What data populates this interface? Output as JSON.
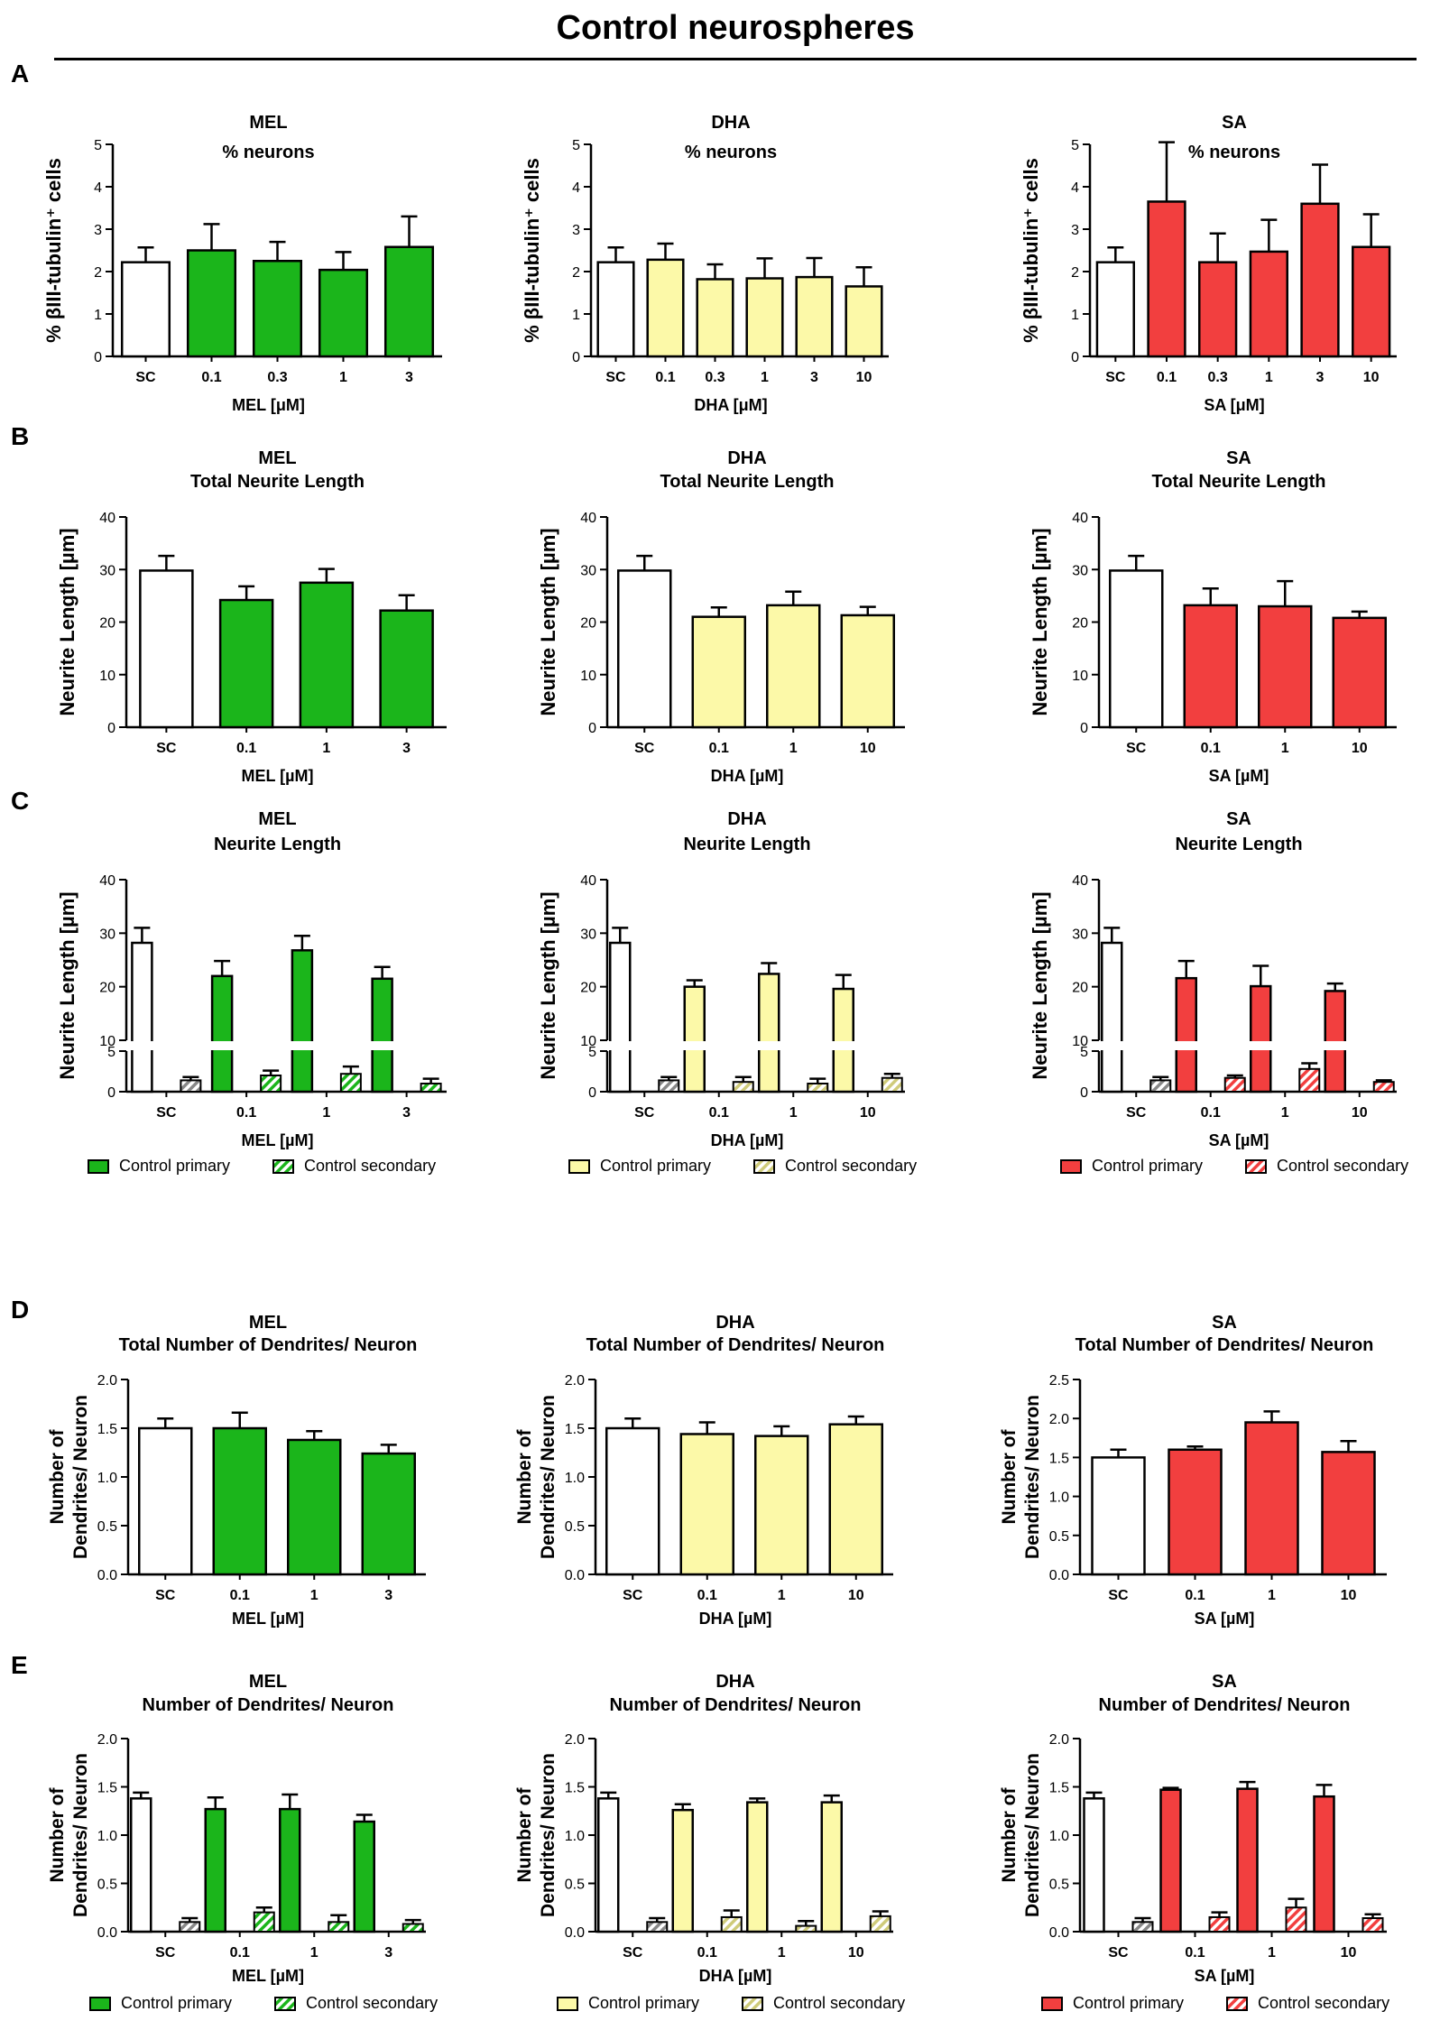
{
  "page": {
    "title": "Control neurospheres",
    "panel_letters": [
      "A",
      "B",
      "C",
      "D",
      "E"
    ]
  },
  "colors": {
    "SC": "#ffffff",
    "MEL": "#1bb51b",
    "DHA": "#fcf9a8",
    "SA": "#f23f3f"
  },
  "legends": {
    "MEL": {
      "primary": "Control primary",
      "secondary": "Control secondary"
    },
    "DHA": {
      "primary": "Control primary",
      "secondary": "Control secondary"
    },
    "SA": {
      "primary": "Control primary",
      "secondary": "Control secondary"
    }
  },
  "chart_data": [
    {
      "id": "A-MEL",
      "row": "A",
      "type": "bar",
      "treatment": "MEL",
      "title": [
        "MEL",
        "% neurons"
      ],
      "ylabel": "% βIII-tubulin⁺ cells",
      "xlabel": "MEL [μM]",
      "ylim": [
        0,
        5
      ],
      "yticks": [
        0,
        1,
        2,
        3,
        4,
        5
      ],
      "categories": [
        "SC",
        "0.1",
        "0.3",
        "1",
        "3"
      ],
      "values": [
        2.22,
        2.5,
        2.25,
        2.04,
        2.58
      ],
      "errors": [
        0.35,
        0.62,
        0.45,
        0.42,
        0.72
      ]
    },
    {
      "id": "A-DHA",
      "row": "A",
      "type": "bar",
      "treatment": "DHA",
      "title": [
        "DHA",
        "% neurons"
      ],
      "ylabel": "% βIII-tubulin⁺ cells",
      "xlabel": "DHA [μM]",
      "ylim": [
        0,
        5
      ],
      "yticks": [
        0,
        1,
        2,
        3,
        4,
        5
      ],
      "categories": [
        "SC",
        "0.1",
        "0.3",
        "1",
        "3",
        "10"
      ],
      "values": [
        2.22,
        2.28,
        1.82,
        1.84,
        1.87,
        1.65
      ],
      "errors": [
        0.35,
        0.38,
        0.35,
        0.47,
        0.45,
        0.45
      ]
    },
    {
      "id": "A-SA",
      "row": "A",
      "type": "bar",
      "treatment": "SA",
      "title": [
        "SA",
        "% neurons"
      ],
      "ylabel": "% βIII-tubulin⁺ cells",
      "xlabel": "SA [μM]",
      "ylim": [
        0,
        5
      ],
      "yticks": [
        0,
        1,
        2,
        3,
        4,
        5
      ],
      "categories": [
        "SC",
        "0.1",
        "0.3",
        "1",
        "3",
        "10"
      ],
      "values": [
        2.22,
        3.65,
        2.22,
        2.47,
        3.6,
        2.58
      ],
      "errors": [
        0.35,
        1.4,
        0.68,
        0.75,
        0.92,
        0.77
      ]
    },
    {
      "id": "B-MEL",
      "row": "B",
      "type": "bar",
      "treatment": "MEL",
      "title": [
        "MEL",
        "Total Neurite Length"
      ],
      "ylabel": "Neurite Length [µm]",
      "xlabel": "MEL [µM]",
      "ylim": [
        0,
        40
      ],
      "yticks": [
        0,
        10,
        20,
        30,
        40
      ],
      "categories": [
        "SC",
        "0.1",
        "1",
        "3"
      ],
      "values": [
        29.8,
        24.2,
        27.5,
        22.2
      ],
      "errors": [
        2.8,
        2.6,
        2.6,
        2.9
      ]
    },
    {
      "id": "B-DHA",
      "row": "B",
      "type": "bar",
      "treatment": "DHA",
      "title": [
        "DHA",
        "Total Neurite Length"
      ],
      "ylabel": "Neurite Length [µm]",
      "xlabel": "DHA [µM]",
      "ylim": [
        0,
        40
      ],
      "yticks": [
        0,
        10,
        20,
        30,
        40
      ],
      "categories": [
        "SC",
        "0.1",
        "1",
        "10"
      ],
      "values": [
        29.8,
        21.0,
        23.2,
        21.3
      ],
      "errors": [
        2.8,
        1.8,
        2.6,
        1.6
      ]
    },
    {
      "id": "B-SA",
      "row": "B",
      "type": "bar",
      "treatment": "SA",
      "title": [
        "SA",
        "Total Neurite Length"
      ],
      "ylabel": "Neurite Length [µm]",
      "xlabel": "SA [µM]",
      "ylim": [
        0,
        40
      ],
      "yticks": [
        0,
        10,
        20,
        30,
        40
      ],
      "categories": [
        "SC",
        "0.1",
        "1",
        "10"
      ],
      "values": [
        29.8,
        23.2,
        23.0,
        20.8
      ],
      "errors": [
        2.8,
        3.2,
        4.8,
        1.2
      ]
    },
    {
      "id": "C-MEL",
      "row": "C",
      "type": "bar",
      "treatment": "MEL",
      "title": [
        "MEL",
        "Neurite Length"
      ],
      "ylabel": "Neurite Length [µm]",
      "xlabel": "MEL [µM]",
      "broken_axis": true,
      "yticks": [
        0,
        5,
        10,
        20,
        30,
        40
      ],
      "categories": [
        "SC",
        "0.1",
        "1",
        "3"
      ],
      "series": [
        {
          "name": "Control primary",
          "values": [
            28.2,
            22.0,
            26.8,
            21.5
          ],
          "errors": [
            2.8,
            2.8,
            2.7,
            2.2
          ]
        },
        {
          "name": "Control secondary",
          "values": [
            1.4,
            2.0,
            2.2,
            1.0
          ],
          "errors": [
            0.4,
            0.6,
            0.9,
            0.6
          ]
        }
      ]
    },
    {
      "id": "C-DHA",
      "row": "C",
      "type": "bar",
      "treatment": "DHA",
      "title": [
        "DHA",
        "Neurite Length"
      ],
      "ylabel": "Neurite Length [µm]",
      "xlabel": "DHA [µM]",
      "broken_axis": true,
      "yticks": [
        0,
        5,
        10,
        20,
        30,
        40
      ],
      "categories": [
        "SC",
        "0.1",
        "1",
        "10"
      ],
      "series": [
        {
          "name": "Control primary",
          "values": [
            28.2,
            20.0,
            22.4,
            19.6
          ],
          "errors": [
            2.8,
            1.2,
            2.0,
            2.6
          ]
        },
        {
          "name": "Control secondary",
          "values": [
            1.4,
            1.2,
            1.0,
            1.7
          ],
          "errors": [
            0.4,
            0.6,
            0.6,
            0.5
          ]
        }
      ]
    },
    {
      "id": "C-SA",
      "row": "C",
      "type": "bar",
      "treatment": "SA",
      "title": [
        "SA",
        "Neurite Length"
      ],
      "ylabel": "Neurite Length [µm]",
      "xlabel": "SA [µM]",
      "broken_axis": true,
      "yticks": [
        0,
        5,
        10,
        20,
        30,
        40
      ],
      "categories": [
        "SC",
        "0.1",
        "1",
        "10"
      ],
      "series": [
        {
          "name": "Control primary",
          "values": [
            28.2,
            21.6,
            20.1,
            19.2
          ],
          "errors": [
            2.8,
            3.2,
            3.8,
            1.4
          ]
        },
        {
          "name": "Control secondary",
          "values": [
            1.4,
            1.7,
            2.8,
            1.2
          ],
          "errors": [
            0.4,
            0.3,
            0.7,
            0.2
          ]
        }
      ]
    },
    {
      "id": "D-MEL",
      "row": "D",
      "type": "bar",
      "treatment": "MEL",
      "title": [
        "MEL",
        "Total Number of Dendrites/ Neuron"
      ],
      "ylabel": [
        "Number of",
        "Dendrites/ Neuron"
      ],
      "xlabel": "MEL [µM]",
      "ylim": [
        0,
        2.0
      ],
      "yticks": [
        0,
        0.5,
        1.0,
        1.5,
        2.0
      ],
      "categories": [
        "SC",
        "0.1",
        "1",
        "3"
      ],
      "values": [
        1.5,
        1.5,
        1.38,
        1.24
      ],
      "errors": [
        0.1,
        0.16,
        0.09,
        0.09
      ]
    },
    {
      "id": "D-DHA",
      "row": "D",
      "type": "bar",
      "treatment": "DHA",
      "title": [
        "DHA",
        "Total Number of Dendrites/ Neuron"
      ],
      "ylabel": [
        "Number of",
        "Dendrites/ Neuron"
      ],
      "xlabel": "DHA [µM]",
      "ylim": [
        0,
        2.0
      ],
      "yticks": [
        0,
        0.5,
        1.0,
        1.5,
        2.0
      ],
      "categories": [
        "SC",
        "0.1",
        "1",
        "10"
      ],
      "values": [
        1.5,
        1.44,
        1.42,
        1.54
      ],
      "errors": [
        0.1,
        0.12,
        0.1,
        0.08
      ]
    },
    {
      "id": "D-SA",
      "row": "D",
      "type": "bar",
      "treatment": "SA",
      "title": [
        "SA",
        "Total Number of Dendrites/ Neuron"
      ],
      "ylabel": [
        "Number of",
        "Dendrites/ Neuron"
      ],
      "xlabel": "SA [µM]",
      "ylim": [
        0,
        2.5
      ],
      "yticks": [
        0,
        0.5,
        1.0,
        1.5,
        2.0,
        2.5
      ],
      "categories": [
        "SC",
        "0.1",
        "1",
        "10"
      ],
      "values": [
        1.5,
        1.6,
        1.95,
        1.57
      ],
      "errors": [
        0.1,
        0.04,
        0.14,
        0.14
      ]
    },
    {
      "id": "E-MEL",
      "row": "E",
      "type": "bar",
      "treatment": "MEL",
      "title": [
        "MEL",
        "Number of Dendrites/ Neuron"
      ],
      "ylabel": [
        "Number of",
        "Dendrites/ Neuron"
      ],
      "xlabel": "MEL [µM]",
      "ylim": [
        0,
        2.0
      ],
      "yticks": [
        0,
        0.5,
        1.0,
        1.5,
        2.0
      ],
      "categories": [
        "SC",
        "0.1",
        "1",
        "3"
      ],
      "series": [
        {
          "name": "Control primary",
          "values": [
            1.38,
            1.27,
            1.27,
            1.14
          ],
          "errors": [
            0.06,
            0.12,
            0.15,
            0.07
          ]
        },
        {
          "name": "Control secondary",
          "values": [
            0.1,
            0.2,
            0.1,
            0.08
          ],
          "errors": [
            0.04,
            0.05,
            0.07,
            0.04
          ]
        }
      ]
    },
    {
      "id": "E-DHA",
      "row": "E",
      "type": "bar",
      "treatment": "DHA",
      "title": [
        "DHA",
        "Number of Dendrites/ Neuron"
      ],
      "ylabel": [
        "Number of",
        "Dendrites/ Neuron"
      ],
      "xlabel": "DHA [µM]",
      "ylim": [
        0,
        2.0
      ],
      "yticks": [
        0,
        0.5,
        1.0,
        1.5,
        2.0
      ],
      "categories": [
        "SC",
        "0.1",
        "1",
        "10"
      ],
      "series": [
        {
          "name": "Control primary",
          "values": [
            1.38,
            1.26,
            1.34,
            1.34
          ],
          "errors": [
            0.06,
            0.06,
            0.04,
            0.07
          ]
        },
        {
          "name": "Control secondary",
          "values": [
            0.1,
            0.15,
            0.06,
            0.16
          ],
          "errors": [
            0.04,
            0.07,
            0.05,
            0.05
          ]
        }
      ]
    },
    {
      "id": "E-SA",
      "row": "E",
      "type": "bar",
      "treatment": "SA",
      "title": [
        "SA",
        "Number of Dendrites/ Neuron"
      ],
      "ylabel": [
        "Number of",
        "Dendrites/ Neuron"
      ],
      "xlabel": "SA [µM]",
      "ylim": [
        0,
        2.0
      ],
      "yticks": [
        0,
        0.5,
        1.0,
        1.5,
        2.0
      ],
      "categories": [
        "SC",
        "0.1",
        "1",
        "10"
      ],
      "series": [
        {
          "name": "Control primary",
          "values": [
            1.38,
            1.47,
            1.48,
            1.4
          ],
          "errors": [
            0.06,
            0.02,
            0.07,
            0.12
          ]
        },
        {
          "name": "Control secondary",
          "values": [
            0.1,
            0.15,
            0.25,
            0.14
          ],
          "errors": [
            0.04,
            0.05,
            0.09,
            0.04
          ]
        }
      ]
    }
  ]
}
